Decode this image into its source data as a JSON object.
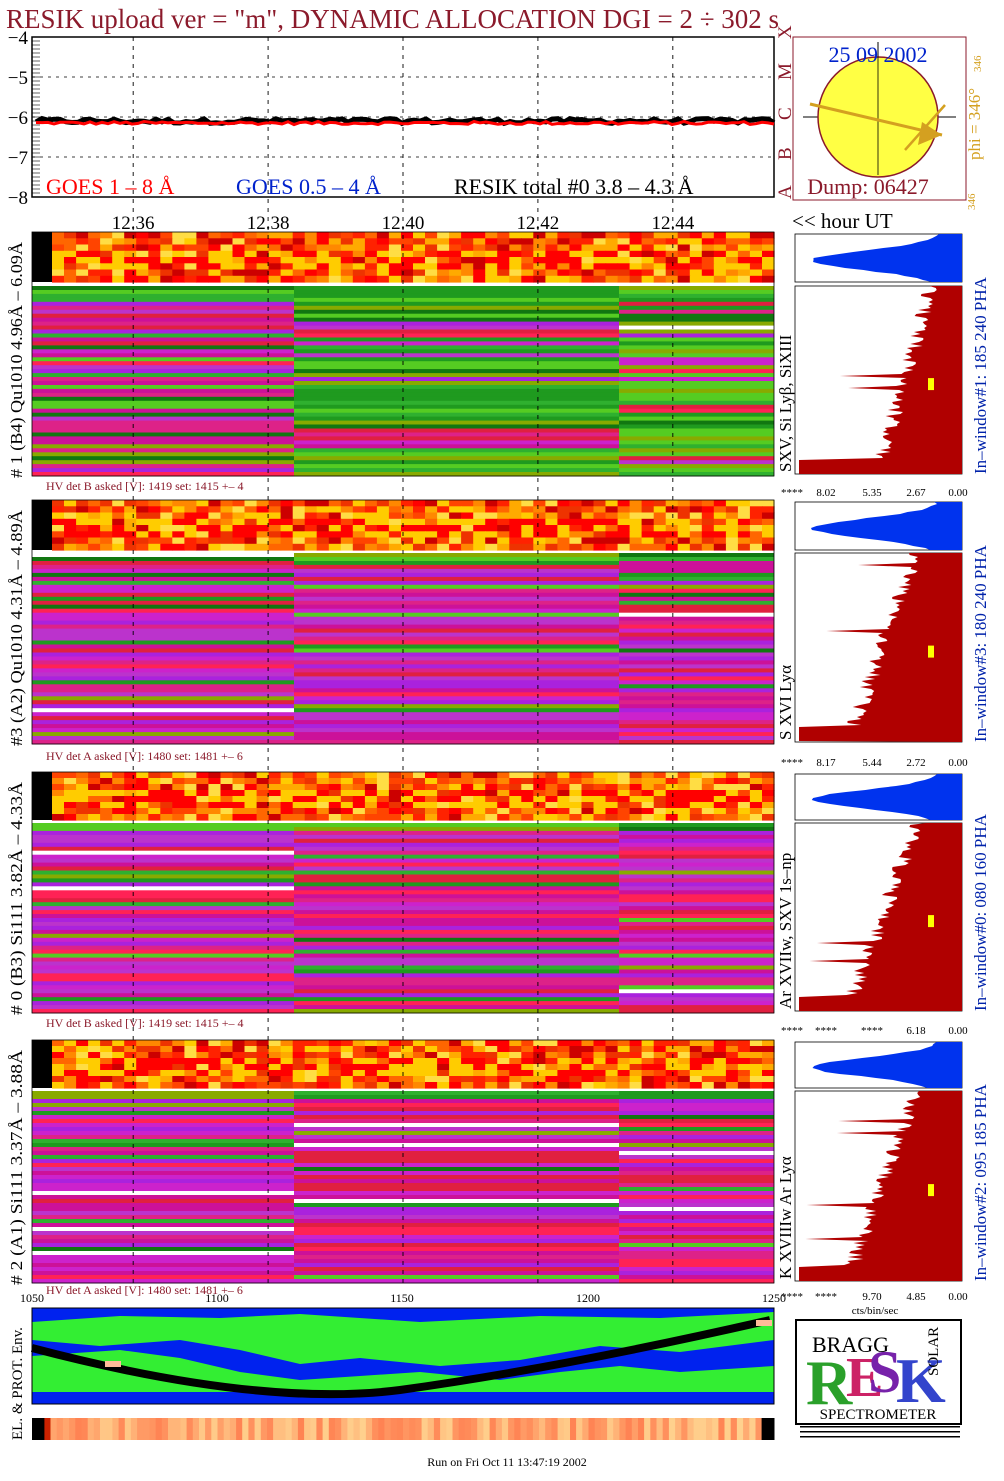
{
  "title": "RESIK upload ver = \"m\", DYNAMIC ALLOCATION  DGI =   2 ÷ 302 s",
  "colors": {
    "title": "#8b1a2b",
    "goes_long": "#ff0000",
    "goes_short": "#0022cc",
    "resik": "#000000",
    "sun": "#ffff44",
    "arrow": "#d4a020",
    "histogram_fill": "#b00000",
    "pha_fill": "#0033ee",
    "panel_bg_green": "#1f9a1f",
    "panel_bg_magenta": "#cc22cc",
    "panel_bg_red": "#e02040",
    "env_blue": "#0022ee",
    "env_green": "#33ee33"
  },
  "lightcurve": {
    "y_ticks": [
      "−4",
      "−5",
      "−6",
      "−7",
      "−8"
    ],
    "legend_goes_long": "GOES 1 – 8 Å",
    "legend_goes_short": "GOES 0.5 – 4 Å",
    "legend_resik": "RESIK total #0  3.8 – 4.3 Å",
    "goes_classes": [
      "X",
      "M",
      "C",
      "B",
      "A"
    ]
  },
  "sun_panel": {
    "date": "25 09 2002",
    "dump": "Dump: 06427",
    "phi_label": "phi = 346°",
    "phi_superscript": "346",
    "phi_bottom": "346"
  },
  "time_axis": {
    "ticks": [
      "12.36",
      "12.38",
      "12.40",
      "12.42",
      "12.44"
    ],
    "unit_label": "<< hour UT"
  },
  "detectors": [
    {
      "left_label": "# 1 (B4) Qu1010 4.96Å – 6.09Å",
      "right_label": "SXV, Si Lyβ, SiXIII",
      "window_label": "In–window#1:  185 240 PHA",
      "hv": "HV det B asked [V]:  1419 set:  1415 +–    4",
      "scale_ticks": [
        "****",
        "8.02",
        "5.35",
        "2.67",
        "0.00"
      ]
    },
    {
      "left_label": "#3 (A2) Qu1010  4.31Å – 4.89Å",
      "right_label": "S XVI Lyα",
      "window_label": "In–window#3:  180 240 PHA",
      "hv": "HV det A asked [V]:  1480 set:  1481 +–    6",
      "scale_ticks": [
        "****",
        "8.17",
        "5.44",
        "2.72",
        "0.00"
      ]
    },
    {
      "left_label": "# 0 (B3) Si111  3.82Å – 4.33Å",
      "right_label": "Ar XVIIw, SXV 1s–np",
      "window_label": "In–window#0:  080 160 PHA",
      "hv": "HV det B asked [V]:  1419 set:  1415 +–    4",
      "scale_ticks": [
        "****",
        "****",
        "****",
        "6.18",
        "0.00"
      ]
    },
    {
      "left_label": "# 2 (A1) Si111  3.37Å – 3.88Å",
      "right_label": "K XVIIIw  Ar Lyα",
      "window_label": "In–window#2:  095 185 PHA",
      "hv": "HV det A asked [V]:  1480 set:  1481 +–    6",
      "scale_ticks": [
        "****",
        "****",
        "9.70",
        "4.85",
        "0.00"
      ]
    }
  ],
  "scale_unit": "cts/bin/sec",
  "env_axis_ticks": [
    "1050",
    "1100",
    "1150",
    "1200",
    "1250"
  ],
  "env_label": "EL. & PROT. Env.",
  "logo": {
    "word1": "RESIK",
    "word2": "BRAGG",
    "word3": "SOLAR",
    "word4": "SPECTROMETER"
  },
  "footer": "Run on Fri Oct 11 13:47:19 2002",
  "chart_data": {
    "type": "line",
    "x_range": [
      12.345,
      12.455
    ],
    "ylim": [
      -8,
      -4
    ],
    "series": [
      {
        "name": "GOES 1 – 8 Å",
        "value_log": -6.15
      },
      {
        "name": "RESIK total #0  3.8 – 4.3 Å",
        "value_log": -6.1
      }
    ]
  }
}
